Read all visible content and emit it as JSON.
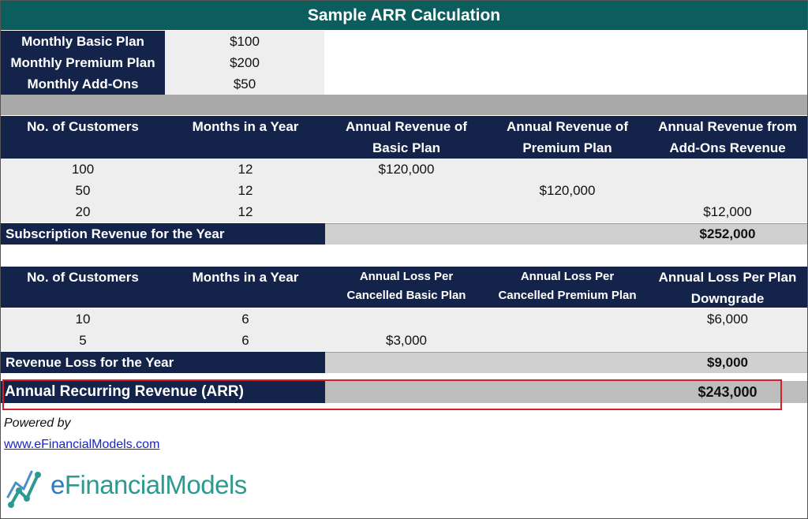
{
  "title": "Sample ARR Calculation",
  "prices": [
    {
      "label": "Monthly Basic Plan",
      "value": "$100"
    },
    {
      "label": "Monthly Premium Plan",
      "value": "$200"
    },
    {
      "label": "Monthly Add-Ons",
      "value": "$50"
    }
  ],
  "revenue_table": {
    "headers": [
      {
        "line1": "No. of Customers",
        "line2": ""
      },
      {
        "line1": "Months in a Year",
        "line2": ""
      },
      {
        "line1": "Annual Revenue of",
        "line2": "Basic Plan"
      },
      {
        "line1": "Annual Revenue of",
        "line2": "Premium Plan"
      },
      {
        "line1": "Annual Revenue from",
        "line2": "Add-Ons Revenue"
      }
    ],
    "rows": [
      {
        "customers": "100",
        "months": "12",
        "basic": "$120,000",
        "premium": "",
        "addons": ""
      },
      {
        "customers": "50",
        "months": "12",
        "basic": "",
        "premium": "$120,000",
        "addons": ""
      },
      {
        "customers": "20",
        "months": "12",
        "basic": "",
        "premium": "",
        "addons": "$12,000"
      }
    ],
    "total_label": "Subscription Revenue for the Year",
    "total_value": "$252,000"
  },
  "loss_table": {
    "headers": [
      {
        "line1": "No. of Customers",
        "line2": ""
      },
      {
        "line1": "Months in a Year",
        "line2": ""
      },
      {
        "line1": "Annual Loss Per",
        "line2": "Cancelled Basic Plan"
      },
      {
        "line1": "Annual Loss Per",
        "line2": "Cancelled Premium Plan"
      },
      {
        "line1": "Annual Loss Per Plan",
        "line2": "Downgrade"
      }
    ],
    "rows": [
      {
        "customers": "10",
        "months": "6",
        "basic": "",
        "premium": "",
        "downgrade": "$6,000"
      },
      {
        "customers": "5",
        "months": "6",
        "basic": "$3,000",
        "premium": "",
        "downgrade": ""
      }
    ],
    "total_label": "Revenue Loss for the Year",
    "total_value": "$9,000"
  },
  "arr": {
    "label": "Annual Recurring Revenue (ARR)",
    "value": "$243,000",
    "highlight_color": "#d0202a"
  },
  "footer": {
    "powered_by": "Powered by",
    "link": "www.eFinancialModels.com",
    "logo_text_e": "e",
    "logo_text_rest": "FinancialModels"
  },
  "colors": {
    "title_bg": "#0c5e5e",
    "header_bg": "#13234a",
    "row_bg": "#eeeeee",
    "total_fill": "#d0d0d0",
    "logo": "#2c9a8e"
  }
}
